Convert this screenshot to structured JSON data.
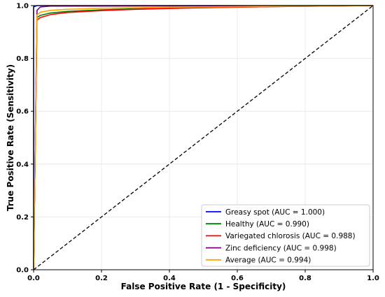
{
  "chart_data": {
    "type": "line",
    "title": "",
    "xlabel": "False Positive Rate (1 - Specificity)",
    "ylabel": "True Positive Rate (Sensitivity)",
    "xlim": [
      0.0,
      1.0
    ],
    "ylim": [
      0.0,
      1.0
    ],
    "x_ticks": [
      "0.0",
      "0.2",
      "0.4",
      "0.6",
      "0.8",
      "1.0"
    ],
    "y_ticks": [
      "0.0",
      "0.2",
      "0.4",
      "0.6",
      "0.8",
      "1.0"
    ],
    "grid": true,
    "legend_position": "bottom-right",
    "series": [
      {
        "name": "Greasy spot (AUC = 1.000)",
        "color": "#0000ff",
        "points": [
          [
            0.0,
            0.0
          ],
          [
            0.0,
            0.995
          ],
          [
            0.01,
            1.0
          ],
          [
            1.0,
            1.0
          ]
        ]
      },
      {
        "name": "Healthy (AUC = 0.990)",
        "color": "#008000",
        "points": [
          [
            0.0,
            0.0
          ],
          [
            0.01,
            0.955
          ],
          [
            0.02,
            0.963
          ],
          [
            0.05,
            0.972
          ],
          [
            0.1,
            0.978
          ],
          [
            0.2,
            0.984
          ],
          [
            0.3,
            0.988
          ],
          [
            0.5,
            0.993
          ],
          [
            0.7,
            0.996
          ],
          [
            1.0,
            1.0
          ]
        ]
      },
      {
        "name": "Variegated chlorosis (AUC = 0.988)",
        "color": "#ff0000",
        "points": [
          [
            0.0,
            0.0
          ],
          [
            0.01,
            0.945
          ],
          [
            0.02,
            0.955
          ],
          [
            0.05,
            0.966
          ],
          [
            0.1,
            0.974
          ],
          [
            0.2,
            0.981
          ],
          [
            0.3,
            0.986
          ],
          [
            0.5,
            0.992
          ],
          [
            0.7,
            0.996
          ],
          [
            1.0,
            1.0
          ]
        ]
      },
      {
        "name": "Zinc deficiency (AUC = 0.998)",
        "color": "#800080",
        "points": [
          [
            0.0,
            0.0
          ],
          [
            0.01,
            0.982
          ],
          [
            0.02,
            0.995
          ],
          [
            0.05,
            0.998
          ],
          [
            1.0,
            1.0
          ]
        ]
      },
      {
        "name": "Average (AUC = 0.994)",
        "color": "#ffa500",
        "points": [
          [
            0.0,
            0.0
          ],
          [
            0.01,
            0.965
          ],
          [
            0.02,
            0.975
          ],
          [
            0.05,
            0.982
          ],
          [
            0.1,
            0.986
          ],
          [
            0.2,
            0.99
          ],
          [
            0.4,
            0.994
          ],
          [
            0.7,
            0.997
          ],
          [
            1.0,
            1.0
          ]
        ]
      }
    ],
    "reference_line": {
      "color": "#000000",
      "style": "dashed",
      "points": [
        [
          0.0,
          0.0
        ],
        [
          1.0,
          1.0
        ]
      ]
    }
  }
}
